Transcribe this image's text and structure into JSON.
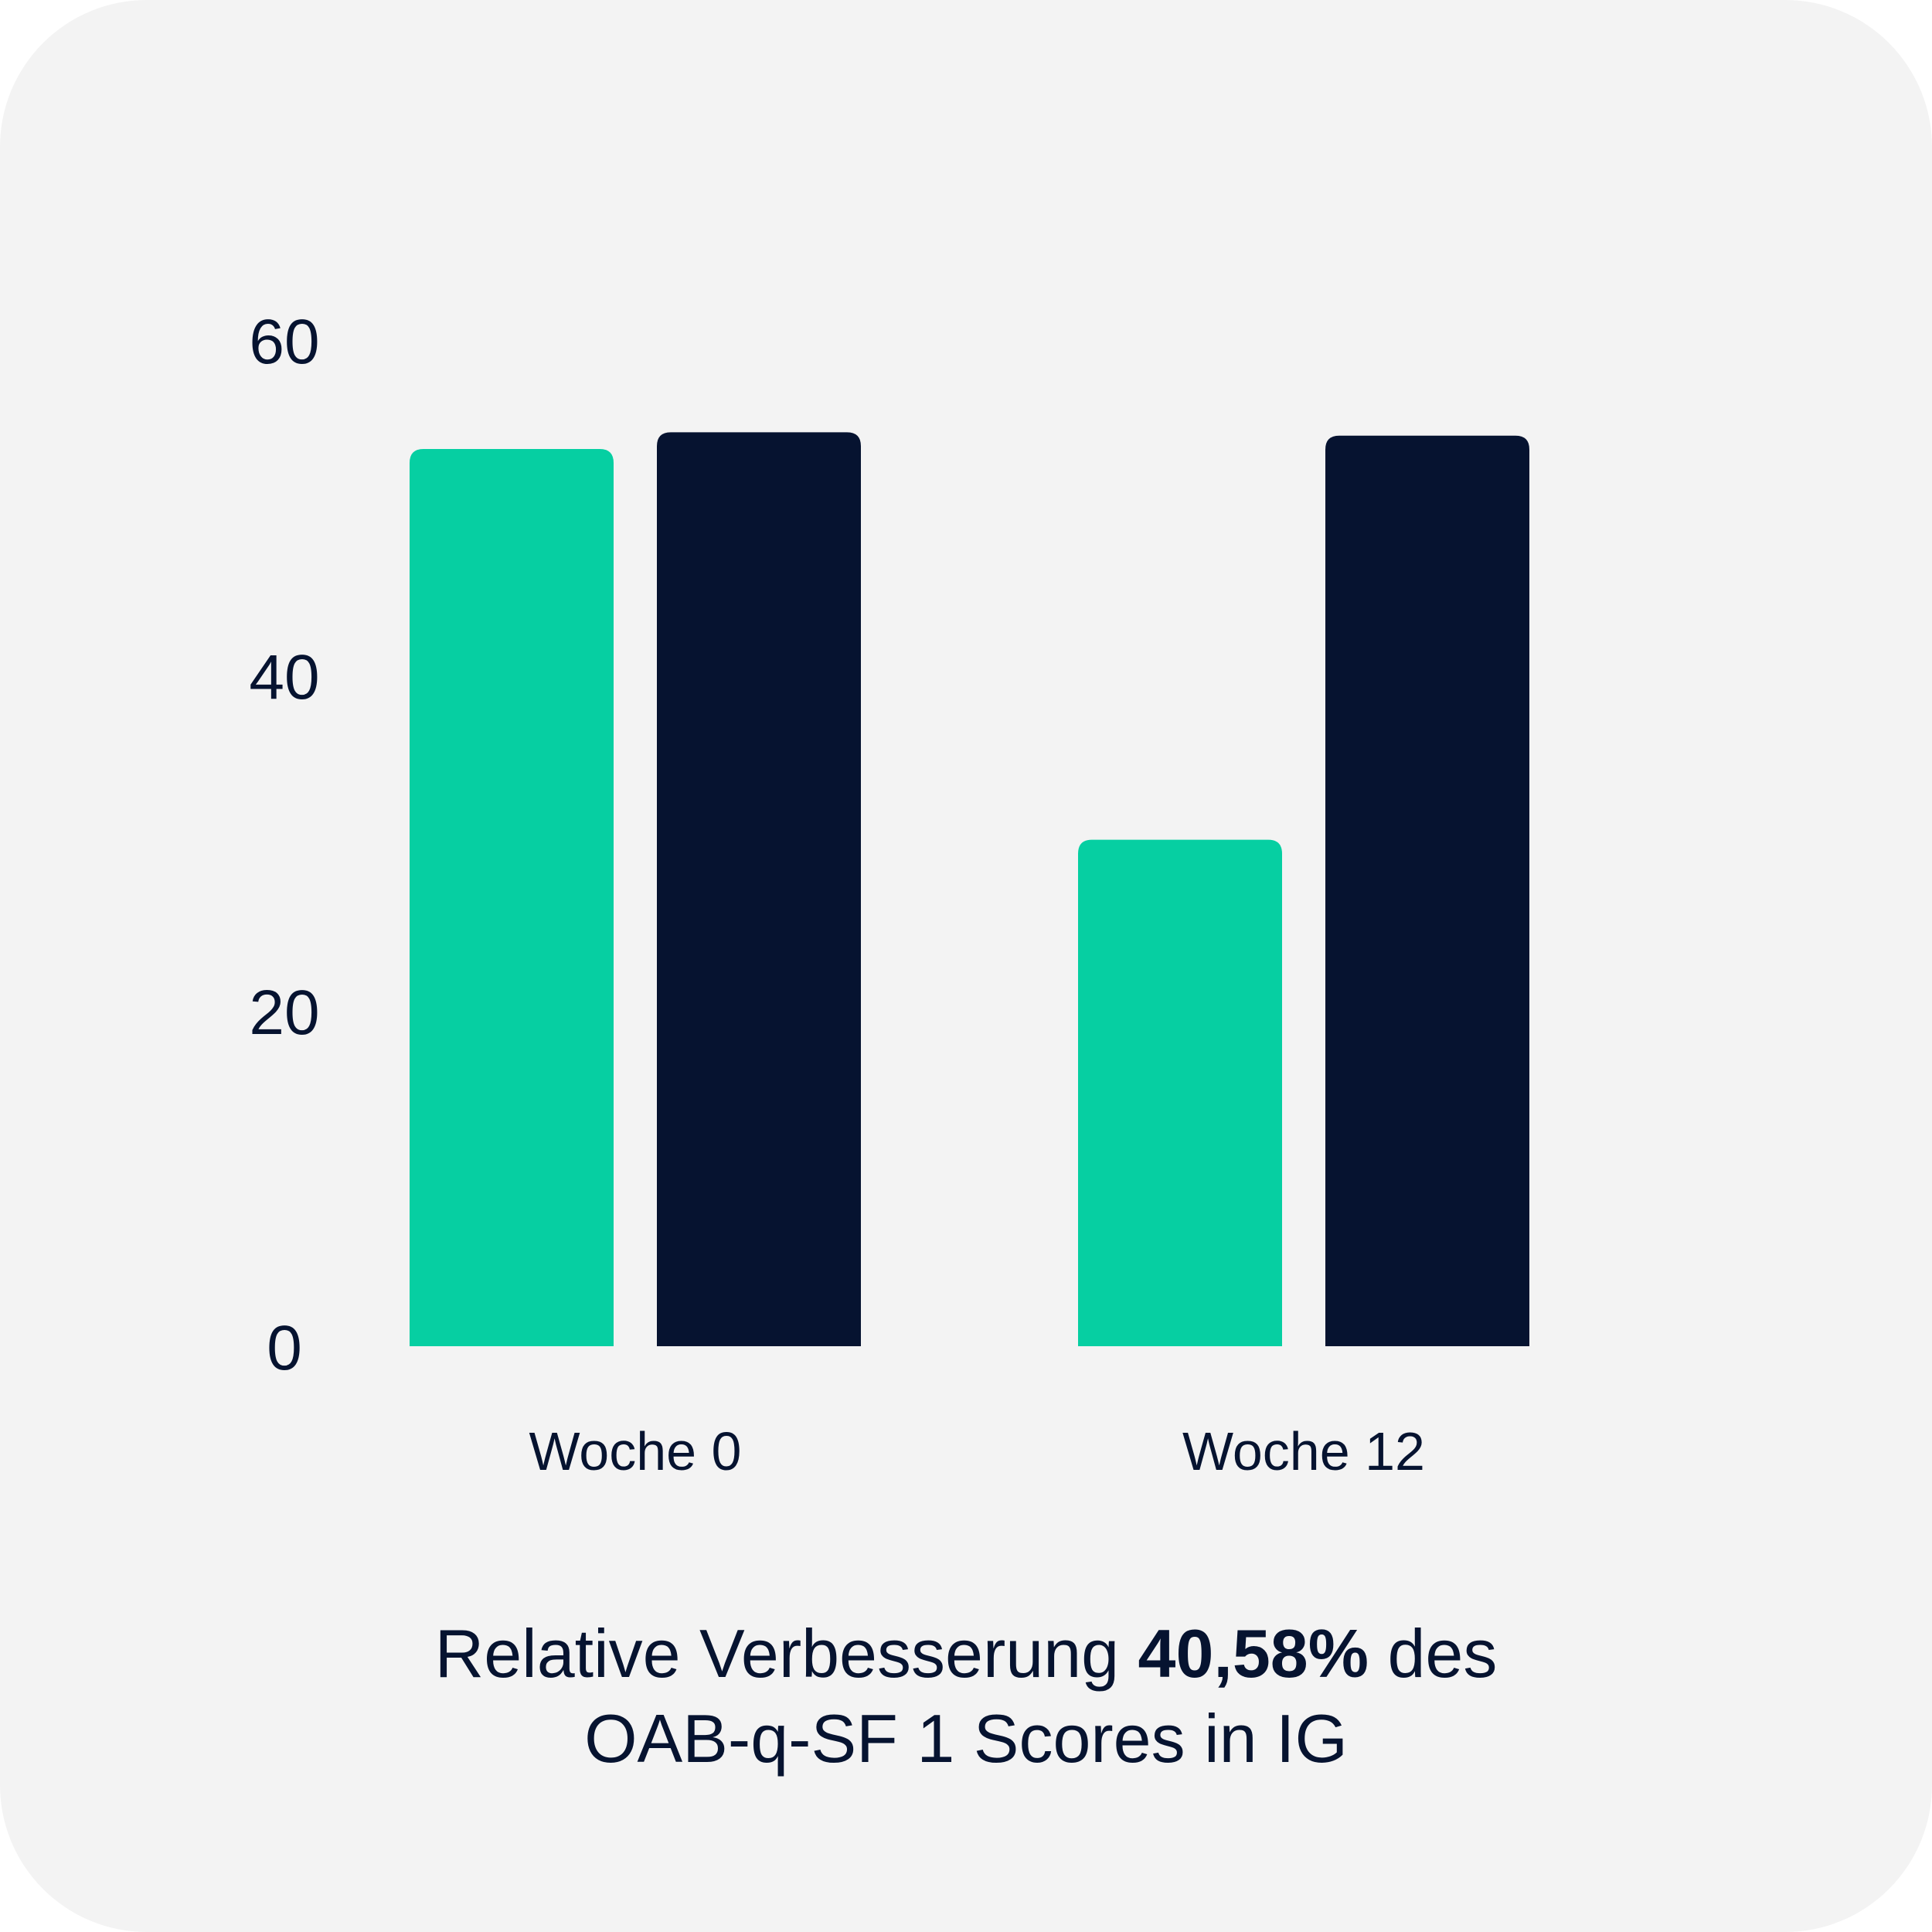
{
  "chart_data": {
    "type": "bar",
    "categories": [
      "Woche 0",
      "Woche 12"
    ],
    "series": [
      {
        "color": "#06cfa2",
        "values": [
          53.5,
          30.2
        ]
      },
      {
        "color": "#061330",
        "values": [
          54.5,
          54.3
        ]
      }
    ],
    "yticks": [
      "0",
      "20",
      "40",
      "60"
    ],
    "ylim": [
      0,
      60
    ],
    "grid": false,
    "legend": "none"
  },
  "caption": {
    "line1_pre": "Relative Verbesserung ",
    "line1_bold": "40,58%",
    "line1_post": " des",
    "line2": "OAB-q-SF 1 Scores in IG"
  }
}
